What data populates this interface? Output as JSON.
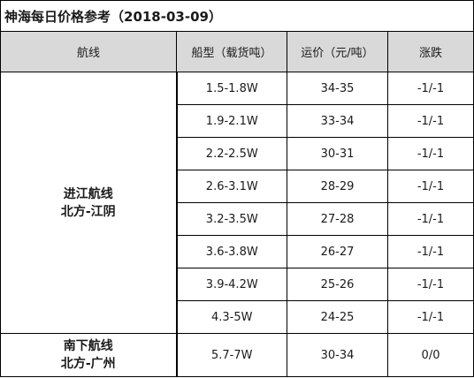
{
  "title": "神海每日价格参考（2018-03-09）",
  "headers": {
    "route": "航线",
    "ship_type": "船型（载货吨）",
    "freight": "运价（元/吨）",
    "change": "涨跌"
  },
  "routes": [
    {
      "name_line1": "进江航线",
      "name_line2": "北方-江阴",
      "rows": [
        {
          "ship_type": "1.5-1.8W",
          "freight": "34-35",
          "change": "-1/-1"
        },
        {
          "ship_type": "1.9-2.1W",
          "freight": "33-34",
          "change": "-1/-1"
        },
        {
          "ship_type": "2.2-2.5W",
          "freight": "30-31",
          "change": "-1/-1"
        },
        {
          "ship_type": "2.6-3.1W",
          "freight": "28-29",
          "change": "-1/-1"
        },
        {
          "ship_type": "3.2-3.5W",
          "freight": "27-28",
          "change": "-1/-1"
        },
        {
          "ship_type": "3.6-3.8W",
          "freight": "26-27",
          "change": "-1/-1"
        },
        {
          "ship_type": "3.9-4.2W",
          "freight": "25-26",
          "change": "-1/-1"
        },
        {
          "ship_type": "4.3-5W",
          "freight": "24-25",
          "change": "-1/-1"
        }
      ]
    },
    {
      "name_line1": "南下航线",
      "name_line2": "北方-广州",
      "rows": [
        {
          "ship_type": "5.7-7W",
          "freight": "30-34",
          "change": "0/0"
        }
      ]
    }
  ]
}
